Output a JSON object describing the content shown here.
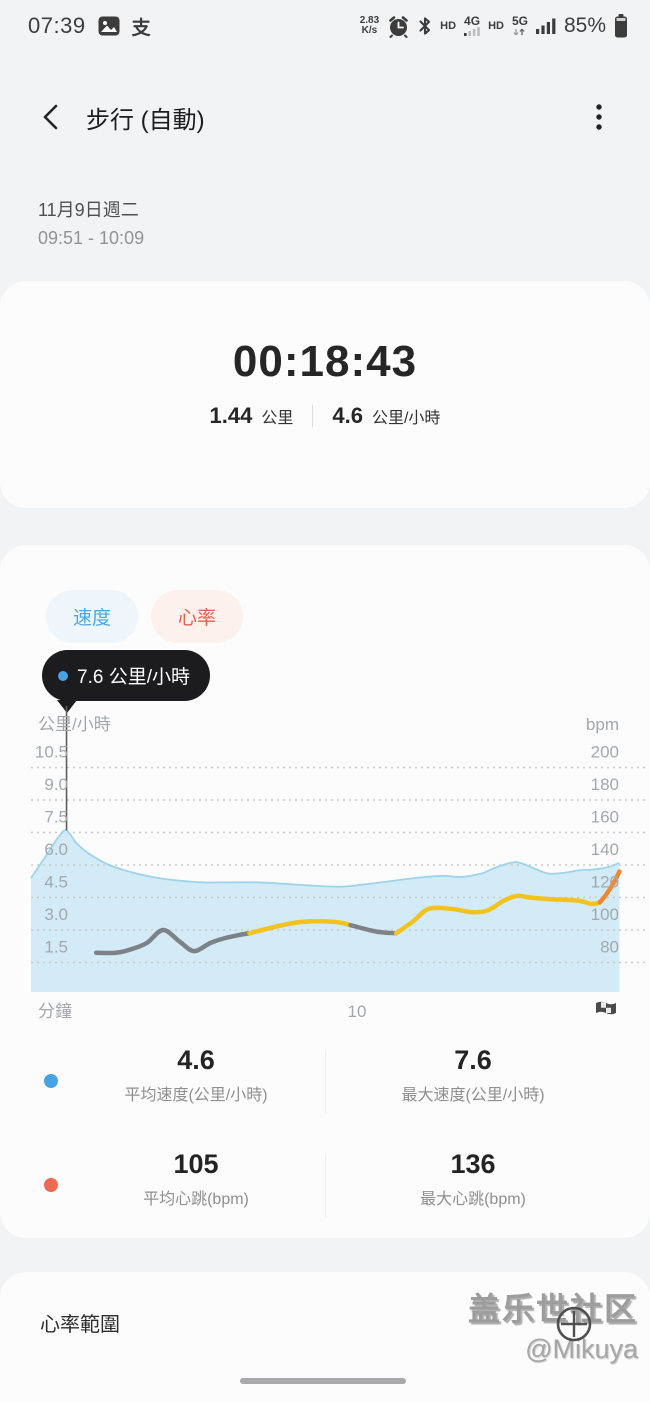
{
  "status_bar": {
    "time": "07:39",
    "alipay_glyph": "支",
    "net_speed_value": "2.83",
    "net_speed_unit": "K/s",
    "hd_left": "HD",
    "network_4g": "4G",
    "hd_right": "HD",
    "network_5g": "5G",
    "battery_percent": "85%"
  },
  "header": {
    "title": "步行 (自動)"
  },
  "session": {
    "date": "11月9日週二",
    "time_range": "09:51 - 10:09"
  },
  "summary": {
    "duration": "00:18:43",
    "distance_value": "1.44",
    "distance_unit": "公里",
    "avg_speed_value": "4.6",
    "avg_speed_unit": "公里/小時"
  },
  "chart_section": {
    "tab_speed": "速度",
    "tab_heart_rate": "心率",
    "tooltip_label": "7.6 公里/小時",
    "accent_blue": "#47a2e6",
    "accent_red": "#e5604d"
  },
  "chart_data": {
    "type": "line",
    "title": "",
    "x_axis": {
      "label": "分鐘",
      "visible_tick": "10",
      "range_minutes": [
        0,
        18.1
      ],
      "end_marker": "finish-flag"
    },
    "left_axis": {
      "label": "公里/小時",
      "ticks": [
        10.5,
        9.0,
        7.5,
        6.0,
        4.5,
        3.0,
        1.5
      ],
      "grid": "dotted"
    },
    "right_axis": {
      "label": "bpm",
      "ticks": [
        200,
        180,
        160,
        140,
        120,
        100,
        80
      ]
    },
    "series": [
      {
        "name": "速度",
        "unit": "公里/小時",
        "axis": "left",
        "style": "area",
        "fill_color": "#d2ebf7",
        "line_color": "#9ed3ea",
        "points": [
          [
            0,
            5.4
          ],
          [
            0.45,
            6.4
          ],
          [
            0.85,
            7.3
          ],
          [
            1.09,
            7.6
          ],
          [
            1.4,
            7.0
          ],
          [
            1.8,
            6.5
          ],
          [
            2.4,
            6.0
          ],
          [
            3.0,
            5.7
          ],
          [
            3.7,
            5.45
          ],
          [
            4.4,
            5.3
          ],
          [
            5.2,
            5.2
          ],
          [
            6.1,
            5.2
          ],
          [
            6.9,
            5.2
          ],
          [
            7.6,
            5.15
          ],
          [
            8.6,
            5.05
          ],
          [
            9.5,
            5.0
          ],
          [
            10.2,
            5.1
          ],
          [
            11.0,
            5.25
          ],
          [
            11.8,
            5.4
          ],
          [
            12.6,
            5.5
          ],
          [
            13.2,
            5.45
          ],
          [
            13.8,
            5.6
          ],
          [
            14.2,
            5.85
          ],
          [
            14.7,
            6.1
          ],
          [
            15.0,
            6.1
          ],
          [
            15.5,
            5.8
          ],
          [
            15.9,
            5.6
          ],
          [
            16.4,
            5.65
          ],
          [
            16.8,
            5.75
          ],
          [
            17.3,
            5.8
          ],
          [
            17.7,
            5.9
          ],
          [
            18.05,
            6.1
          ]
        ]
      },
      {
        "name": "心率",
        "unit": "bpm",
        "axis": "right",
        "style": "line",
        "segments": [
          {
            "zone": "low",
            "color": "#7e8287",
            "points": [
              [
                2.0,
                86
              ],
              [
                2.6,
                86
              ],
              [
                3.05,
                88
              ],
              [
                3.55,
                92
              ],
              [
                4.05,
                100
              ],
              [
                4.55,
                93
              ],
              [
                5.0,
                87
              ],
              [
                5.5,
                92
              ],
              [
                5.95,
                95
              ],
              [
                6.4,
                97
              ],
              [
                6.7,
                98
              ]
            ]
          },
          {
            "zone": "moderate",
            "color": "#f2c21f",
            "points": [
              [
                6.7,
                98
              ],
              [
                7.5,
                102
              ],
              [
                8.3,
                105
              ],
              [
                9.3,
                105
              ],
              [
                9.8,
                103
              ]
            ]
          },
          {
            "zone": "low",
            "color": "#7e8287",
            "points": [
              [
                9.8,
                103
              ],
              [
                10.6,
                99
              ],
              [
                11.2,
                98
              ]
            ]
          },
          {
            "zone": "moderate",
            "color": "#f2c21f",
            "points": [
              [
                11.2,
                98
              ],
              [
                11.7,
                105
              ],
              [
                12.2,
                113
              ],
              [
                12.9,
                113
              ],
              [
                13.5,
                111
              ],
              [
                14.0,
                112
              ],
              [
                14.5,
                118
              ],
              [
                14.9,
                121
              ],
              [
                15.3,
                120
              ],
              [
                15.9,
                119
              ],
              [
                16.8,
                118
              ],
              [
                17.2,
                116
              ],
              [
                17.45,
                117
              ]
            ]
          },
          {
            "zone": "high",
            "color": "#ec8a33",
            "points": [
              [
                17.45,
                117
              ],
              [
                17.65,
                122
              ],
              [
                17.9,
                130
              ],
              [
                18.05,
                136
              ]
            ]
          }
        ]
      }
    ],
    "marker": {
      "x_minute": 1.09,
      "value": 7.6,
      "label": "7.6 公里/小時"
    }
  },
  "stats": {
    "rows": [
      {
        "dot_color": "#47a2e6",
        "cells": [
          {
            "value": "4.6",
            "label": "平均速度(公里/小時)"
          },
          {
            "value": "7.6",
            "label": "最大速度(公里/小時)"
          }
        ]
      },
      {
        "dot_color": "#ee6a52",
        "cells": [
          {
            "value": "105",
            "label": "平均心跳(bpm)"
          },
          {
            "value": "136",
            "label": "最大心跳(bpm)"
          }
        ]
      }
    ]
  },
  "footer": {
    "heart_rate_range_label": "心率範圍"
  },
  "watermark": {
    "line1": "盖乐世社区",
    "line2": "@Mikuya"
  }
}
